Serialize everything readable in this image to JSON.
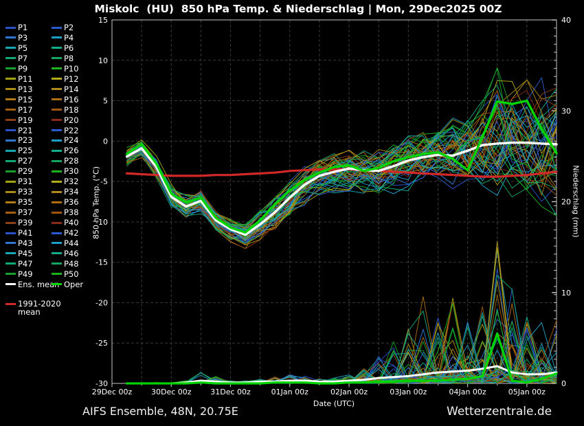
{
  "title": "Miskolc  (HU)  850 hPa Temp. & Niederschlag | Mon, 29Dec2025 00Z",
  "footer_left": "AIFS Ensemble, 48N, 20.75E",
  "footer_right": "Wetterzentrale.de",
  "axes": {
    "x_label": "Date (UTC)",
    "y_left_label": "850 hPa Temp. (°C)",
    "y_right_label": "Niederschlag (mm)",
    "x_tick_labels": [
      "29Dec 00z",
      "30Dec 00z",
      "31Dec 00z",
      "01Jan 00z",
      "02Jan 00z",
      "03Jan 00z",
      "04Jan 00z",
      "05Jan 00z"
    ],
    "y_left_ticks": [
      15,
      10,
      5,
      0,
      -5,
      -10,
      -15,
      -20,
      -25,
      -30
    ],
    "y_right_ticks": [
      40,
      30,
      20,
      10,
      0
    ]
  },
  "legend": {
    "members": [
      "P1",
      "P2",
      "P3",
      "P4",
      "P5",
      "P6",
      "P7",
      "P8",
      "P9",
      "P10",
      "P11",
      "P12",
      "P13",
      "P14",
      "P15",
      "P16",
      "P17",
      "P18",
      "P19",
      "P20",
      "P21",
      "P22",
      "P23",
      "P24",
      "P25",
      "P26",
      "P27",
      "P28",
      "P29",
      "P30",
      "P31",
      "P32",
      "P33",
      "P34",
      "P35",
      "P36",
      "P37",
      "P38",
      "P39",
      "P40",
      "P41",
      "P42",
      "P43",
      "P44",
      "P45",
      "P46",
      "P47",
      "P48",
      "P49",
      "P50"
    ],
    "mean_label": "Ens. mean",
    "oper_label": "Oper",
    "climate_label_line1": "1991-2020",
    "climate_label_line2": "mean"
  },
  "colors": {
    "background": "#000000",
    "frame": "#c8c8c8",
    "grid": "#3b3b36",
    "text": "#ffffff",
    "ens_mean": "#ffffff",
    "oper": "#00d400",
    "climate_mean": "#d22828",
    "member_palette": [
      "#2b52c8",
      "#2b5ad0",
      "#2e78d4",
      "#1f9fc8",
      "#17a8b4",
      "#12ad8a",
      "#12a877",
      "#15a562",
      "#17a02e",
      "#1eb31e",
      "#a3a312",
      "#b3ab1c",
      "#ab8d15",
      "#b08a1d",
      "#b27b16",
      "#ad6f12",
      "#a5600f",
      "#a0560e",
      "#8f3f14",
      "#8a2a14"
    ]
  },
  "chart_data": {
    "type": "line",
    "x_unit": "hours since Mon 29Dec2025 00Z",
    "x_hours": [
      6,
      12,
      18,
      24,
      30,
      36,
      42,
      48,
      54,
      60,
      66,
      72,
      78,
      84,
      90,
      96,
      102,
      108,
      114,
      120,
      126,
      132,
      138,
      144,
      150,
      156,
      162,
      168,
      174,
      180
    ],
    "x_range_days": [
      0,
      7.5
    ],
    "y_left_range": [
      -30,
      15
    ],
    "y_right_range": [
      0,
      40
    ],
    "grid": "dashed, every 12h vertical, every 5°C horizontal",
    "series": {
      "ens_mean_temp": [
        -1.9,
        -0.9,
        -3.2,
        -6.9,
        -8.1,
        -7.4,
        -9.8,
        -10.9,
        -11.6,
        -10.3,
        -8.8,
        -7.0,
        -5.4,
        -4.3,
        -3.8,
        -3.4,
        -3.6,
        -3.7,
        -3.1,
        -2.4,
        -2.0,
        -1.7,
        -1.8,
        -1.2,
        -0.5,
        -0.3,
        -0.2,
        -0.2,
        -0.3,
        -0.4
      ],
      "oper_temp": [
        -1.6,
        -0.4,
        -2.8,
        -6.5,
        -7.6,
        -7.0,
        -9.5,
        -10.7,
        -11.3,
        -9.8,
        -7.8,
        -6.1,
        -4.8,
        -3.9,
        -3.2,
        -3.0,
        -3.7,
        -3.3,
        -2.5,
        -2.0,
        -1.6,
        -1.4,
        -2.2,
        -3.6,
        0.5,
        4.9,
        4.6,
        5.0,
        1.5,
        -1.5
      ],
      "climate_mean_temp": [
        -4.0,
        -4.1,
        -4.2,
        -4.3,
        -4.3,
        -4.3,
        -4.2,
        -4.2,
        -4.1,
        -4.0,
        -3.9,
        -3.7,
        -3.6,
        -3.5,
        -3.5,
        -3.5,
        -3.6,
        -3.7,
        -3.8,
        -3.9,
        -4.0,
        -4.1,
        -4.2,
        -4.3,
        -4.4,
        -4.4,
        -4.3,
        -4.2,
        -4.0,
        -3.8
      ],
      "temp_envelope_min": [
        -3.4,
        -2.2,
        -4.5,
        -8.3,
        -9.6,
        -9.0,
        -11.3,
        -12.5,
        -13.2,
        -12.2,
        -11.0,
        -9.6,
        -8.0,
        -7.0,
        -6.6,
        -6.2,
        -6.6,
        -7.0,
        -6.6,
        -6.2,
        -6.0,
        -5.8,
        -6.0,
        -6.5,
        -6.5,
        -7.0,
        -7.5,
        -8.0,
        -8.8,
        -9.6
      ],
      "temp_envelope_max": [
        -0.7,
        0.2,
        -1.8,
        -5.2,
        -6.4,
        -5.6,
        -8.2,
        -9.3,
        -10.0,
        -8.5,
        -6.6,
        -4.8,
        -3.2,
        -2.0,
        -1.2,
        -0.6,
        -0.4,
        0.0,
        0.6,
        1.2,
        1.6,
        2.2,
        3.0,
        3.6,
        6.5,
        9.5,
        7.5,
        7.5,
        8.0,
        8.0
      ],
      "ens_mean_precip": [
        0,
        0,
        0,
        0,
        0.1,
        0.3,
        0.2,
        0.1,
        0.1,
        0.2,
        0.2,
        0.3,
        0.3,
        0.2,
        0.2,
        0.3,
        0.4,
        0.6,
        0.7,
        0.8,
        1.0,
        1.2,
        1.3,
        1.4,
        1.6,
        1.9,
        1.2,
        1.0,
        1.0,
        1.2
      ],
      "oper_precip": [
        0,
        0,
        0,
        0,
        0,
        0.1,
        0,
        0,
        0,
        0,
        0.1,
        0.1,
        0.1,
        0,
        0,
        0.1,
        0.1,
        0.2,
        0.2,
        0.3,
        0.3,
        0.3,
        0.4,
        0.5,
        0.8,
        5.5,
        0.3,
        0.1,
        0.5,
        1.1
      ],
      "precip_envelope_max": [
        0,
        0,
        0.1,
        0.1,
        0.3,
        1.3,
        0.9,
        0.3,
        0.3,
        0.5,
        0.8,
        1.0,
        0.8,
        0.5,
        0.6,
        1.0,
        1.8,
        3.0,
        5.0,
        6.5,
        10.4,
        8.0,
        9.8,
        7.0,
        10.0,
        16.0,
        12.0,
        8.0,
        9.1,
        7.0
      ]
    },
    "note": "50 ensemble member traces (P1-P50) fill the min-max envelopes; colors cycle through the 20-color member palette"
  }
}
